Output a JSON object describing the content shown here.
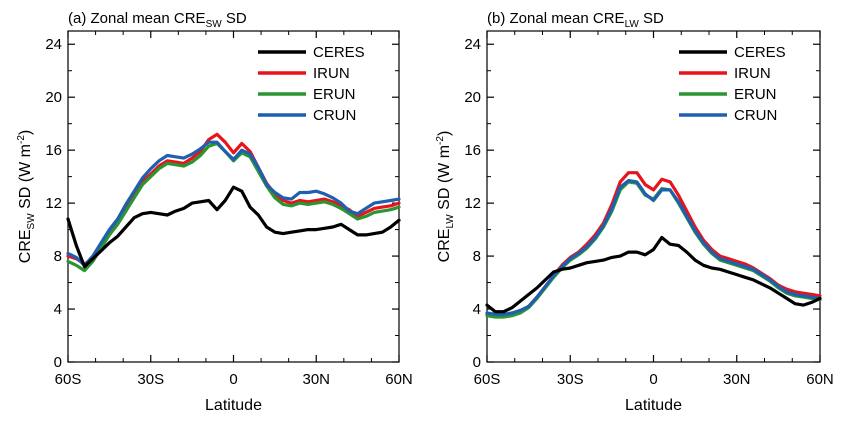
{
  "chart_data": [
    {
      "type": "line",
      "title": {
        "prefix": "(a) Zonal mean CRE",
        "sub": "SW",
        "suffix": " SD"
      },
      "xlabel": "Latitude",
      "ylabel": {
        "prefix": "CRE",
        "sub": "SW",
        "mid": " SD (W m",
        "sup": "-2",
        "suffix": ")"
      },
      "xlim": [
        -60,
        60
      ],
      "ylim": [
        0,
        25
      ],
      "xticks": [
        -60,
        -30,
        0,
        30,
        60
      ],
      "xtick_labels": [
        "60S",
        "30S",
        "0",
        "30N",
        "60N"
      ],
      "yticks": [
        0,
        4,
        8,
        12,
        16,
        20,
        24
      ],
      "ytick_labels": [
        "0",
        "4",
        "8",
        "12",
        "16",
        "20",
        "24"
      ],
      "grid": false,
      "legend": "top-right",
      "x": [
        -60,
        -57,
        -54,
        -51,
        -48,
        -45,
        -42,
        -39,
        -36,
        -33,
        -30,
        -27,
        -24,
        -21,
        -18,
        -15,
        -12,
        -9,
        -6,
        -3,
        0,
        3,
        6,
        9,
        12,
        15,
        18,
        21,
        24,
        27,
        30,
        33,
        36,
        39,
        42,
        45,
        48,
        51,
        54,
        57,
        60
      ],
      "series": [
        {
          "name": "CERES",
          "color": "#000000",
          "values": [
            10.8,
            8.8,
            7.2,
            7.8,
            8.4,
            9.0,
            9.5,
            10.2,
            10.9,
            11.2,
            11.3,
            11.2,
            11.1,
            11.4,
            11.6,
            12.0,
            12.1,
            12.2,
            11.5,
            12.2,
            13.2,
            12.9,
            11.7,
            11.1,
            10.2,
            9.8,
            9.7,
            9.8,
            9.9,
            10.0,
            10.0,
            10.1,
            10.2,
            10.4,
            10.0,
            9.6,
            9.6,
            9.7,
            9.8,
            10.2,
            10.7
          ]
        },
        {
          "name": "IRUN",
          "color": "#e8141a",
          "values": [
            8.0,
            7.8,
            7.4,
            7.8,
            8.8,
            9.8,
            10.6,
            11.6,
            12.6,
            13.6,
            14.2,
            14.8,
            15.2,
            15.1,
            15.0,
            15.4,
            15.9,
            16.8,
            17.2,
            16.6,
            15.8,
            16.5,
            15.9,
            14.7,
            13.5,
            12.7,
            12.2,
            12.0,
            12.2,
            12.1,
            12.2,
            12.3,
            12.1,
            11.8,
            11.5,
            11.0,
            11.3,
            11.6,
            11.7,
            11.8,
            12.0
          ]
        },
        {
          "name": "ERUN",
          "color": "#2a9532",
          "values": [
            7.6,
            7.3,
            6.9,
            7.6,
            8.6,
            9.6,
            10.4,
            11.4,
            12.4,
            13.4,
            14.0,
            14.6,
            15.0,
            14.9,
            14.8,
            15.1,
            15.6,
            16.3,
            16.5,
            15.9,
            15.2,
            15.8,
            15.5,
            14.4,
            13.3,
            12.4,
            11.9,
            11.8,
            12.0,
            11.9,
            12.0,
            12.1,
            11.9,
            11.6,
            11.2,
            10.8,
            11.0,
            11.3,
            11.4,
            11.5,
            11.7
          ]
        },
        {
          "name": "CRUN",
          "color": "#1f5fb0",
          "values": [
            8.2,
            7.9,
            7.3,
            8.0,
            9.0,
            10.0,
            10.8,
            11.9,
            12.9,
            13.9,
            14.6,
            15.2,
            15.6,
            15.5,
            15.4,
            15.7,
            16.1,
            16.6,
            16.6,
            15.9,
            15.3,
            16.0,
            15.7,
            14.7,
            13.4,
            12.8,
            12.4,
            12.3,
            12.8,
            12.8,
            12.9,
            12.7,
            12.4,
            12.0,
            11.4,
            11.2,
            11.6,
            12.0,
            12.1,
            12.2,
            12.3
          ]
        }
      ]
    },
    {
      "type": "line",
      "title": {
        "prefix": "(b) Zonal mean CRE",
        "sub": "LW",
        "suffix": " SD"
      },
      "xlabel": "Latitude",
      "ylabel": {
        "prefix": "CRE",
        "sub": "LW",
        "mid": " SD (W m",
        "sup": "-2",
        "suffix": ")"
      },
      "xlim": [
        -60,
        60
      ],
      "ylim": [
        0,
        25
      ],
      "xticks": [
        -60,
        -30,
        0,
        30,
        60
      ],
      "xtick_labels": [
        "60S",
        "30S",
        "0",
        "30N",
        "60N"
      ],
      "yticks": [
        0,
        4,
        8,
        12,
        16,
        20,
        24
      ],
      "ytick_labels": [
        "0",
        "4",
        "8",
        "12",
        "16",
        "20",
        "24"
      ],
      "grid": false,
      "legend": "top-right",
      "x": [
        -60,
        -57,
        -54,
        -51,
        -48,
        -45,
        -42,
        -39,
        -36,
        -33,
        -30,
        -27,
        -24,
        -21,
        -18,
        -15,
        -12,
        -9,
        -6,
        -3,
        0,
        3,
        6,
        9,
        12,
        15,
        18,
        21,
        24,
        27,
        30,
        33,
        36,
        39,
        42,
        45,
        48,
        51,
        54,
        57,
        60
      ],
      "series": [
        {
          "name": "CERES",
          "color": "#000000",
          "values": [
            4.3,
            3.8,
            3.8,
            4.1,
            4.6,
            5.1,
            5.6,
            6.2,
            6.8,
            7.0,
            7.1,
            7.3,
            7.5,
            7.6,
            7.7,
            7.9,
            8.0,
            8.3,
            8.3,
            8.1,
            8.5,
            9.4,
            8.9,
            8.8,
            8.3,
            7.7,
            7.3,
            7.1,
            7.0,
            6.8,
            6.6,
            6.4,
            6.2,
            5.9,
            5.6,
            5.2,
            4.8,
            4.4,
            4.3,
            4.5,
            4.8
          ]
        },
        {
          "name": "IRUN",
          "color": "#e8141a",
          "values": [
            3.6,
            3.5,
            3.5,
            3.6,
            3.8,
            4.2,
            4.9,
            5.7,
            6.5,
            7.3,
            7.9,
            8.3,
            8.9,
            9.6,
            10.5,
            11.9,
            13.6,
            14.3,
            14.3,
            13.4,
            13.0,
            13.8,
            13.6,
            12.6,
            11.4,
            10.2,
            9.2,
            8.5,
            8.0,
            7.8,
            7.6,
            7.4,
            7.1,
            6.7,
            6.3,
            5.8,
            5.5,
            5.3,
            5.2,
            5.1,
            5.0
          ]
        },
        {
          "name": "ERUN",
          "color": "#2a9532",
          "values": [
            3.5,
            3.4,
            3.4,
            3.5,
            3.7,
            4.1,
            4.8,
            5.6,
            6.4,
            7.1,
            7.7,
            8.1,
            8.6,
            9.3,
            10.2,
            11.4,
            13.0,
            13.6,
            13.5,
            12.6,
            12.3,
            13.1,
            13.0,
            12.0,
            10.9,
            9.8,
            8.9,
            8.2,
            7.7,
            7.5,
            7.3,
            7.1,
            6.9,
            6.5,
            6.1,
            5.6,
            5.2,
            5.0,
            4.9,
            4.8,
            4.7
          ]
        },
        {
          "name": "CRUN",
          "color": "#1f5fb0",
          "values": [
            3.7,
            3.6,
            3.6,
            3.7,
            3.9,
            4.2,
            4.9,
            5.7,
            6.5,
            7.2,
            7.8,
            8.2,
            8.7,
            9.4,
            10.3,
            11.6,
            13.2,
            13.7,
            13.6,
            12.7,
            12.2,
            13.0,
            13.0,
            12.1,
            11.0,
            9.9,
            9.0,
            8.3,
            7.8,
            7.6,
            7.4,
            7.2,
            7.0,
            6.6,
            6.2,
            5.7,
            5.3,
            5.1,
            5.0,
            4.9,
            4.8
          ]
        }
      ]
    }
  ]
}
